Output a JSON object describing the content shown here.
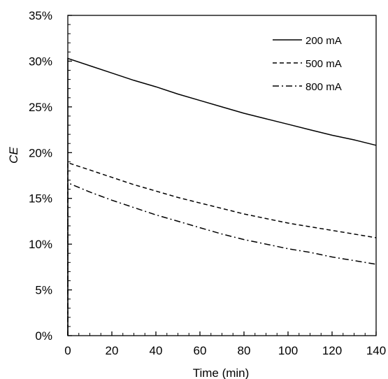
{
  "chart_data": {
    "type": "line",
    "title": "",
    "xlabel": "Time (min)",
    "ylabel": "CE",
    "xlim": [
      0,
      140
    ],
    "ylim": [
      0,
      0.35
    ],
    "xticks": [
      0,
      20,
      40,
      60,
      80,
      100,
      120,
      140
    ],
    "xtick_labels": [
      "0",
      "20",
      "40",
      "60",
      "80",
      "100",
      "120",
      "140"
    ],
    "yticks": [
      0,
      0.05,
      0.1,
      0.15,
      0.2,
      0.25,
      0.3,
      0.35
    ],
    "ytick_labels": [
      "0%",
      "5%",
      "10%",
      "15%",
      "20%",
      "25%",
      "30%",
      "35%"
    ],
    "grid": false,
    "legend_position": "top-right",
    "series": [
      {
        "name": "200 mA",
        "line_style": "solid",
        "x": [
          0,
          10,
          20,
          30,
          40,
          50,
          60,
          70,
          80,
          90,
          100,
          110,
          120,
          130,
          140
        ],
        "y": [
          0.303,
          0.295,
          0.287,
          0.279,
          0.272,
          0.264,
          0.257,
          0.25,
          0.243,
          0.237,
          0.231,
          0.225,
          0.219,
          0.214,
          0.208
        ]
      },
      {
        "name": "500 mA",
        "line_style": "dashed",
        "x": [
          0,
          10,
          20,
          30,
          40,
          50,
          60,
          70,
          80,
          90,
          100,
          110,
          120,
          130,
          140
        ],
        "y": [
          0.189,
          0.181,
          0.173,
          0.165,
          0.158,
          0.151,
          0.145,
          0.139,
          0.133,
          0.128,
          0.123,
          0.119,
          0.115,
          0.111,
          0.107
        ]
      },
      {
        "name": "800 mA",
        "line_style": "dash-dot",
        "x": [
          0,
          10,
          20,
          30,
          40,
          50,
          60,
          70,
          80,
          90,
          100,
          110,
          120,
          130,
          140
        ],
        "y": [
          0.167,
          0.157,
          0.148,
          0.14,
          0.132,
          0.125,
          0.118,
          0.111,
          0.105,
          0.1,
          0.095,
          0.091,
          0.086,
          0.082,
          0.078
        ]
      }
    ]
  }
}
